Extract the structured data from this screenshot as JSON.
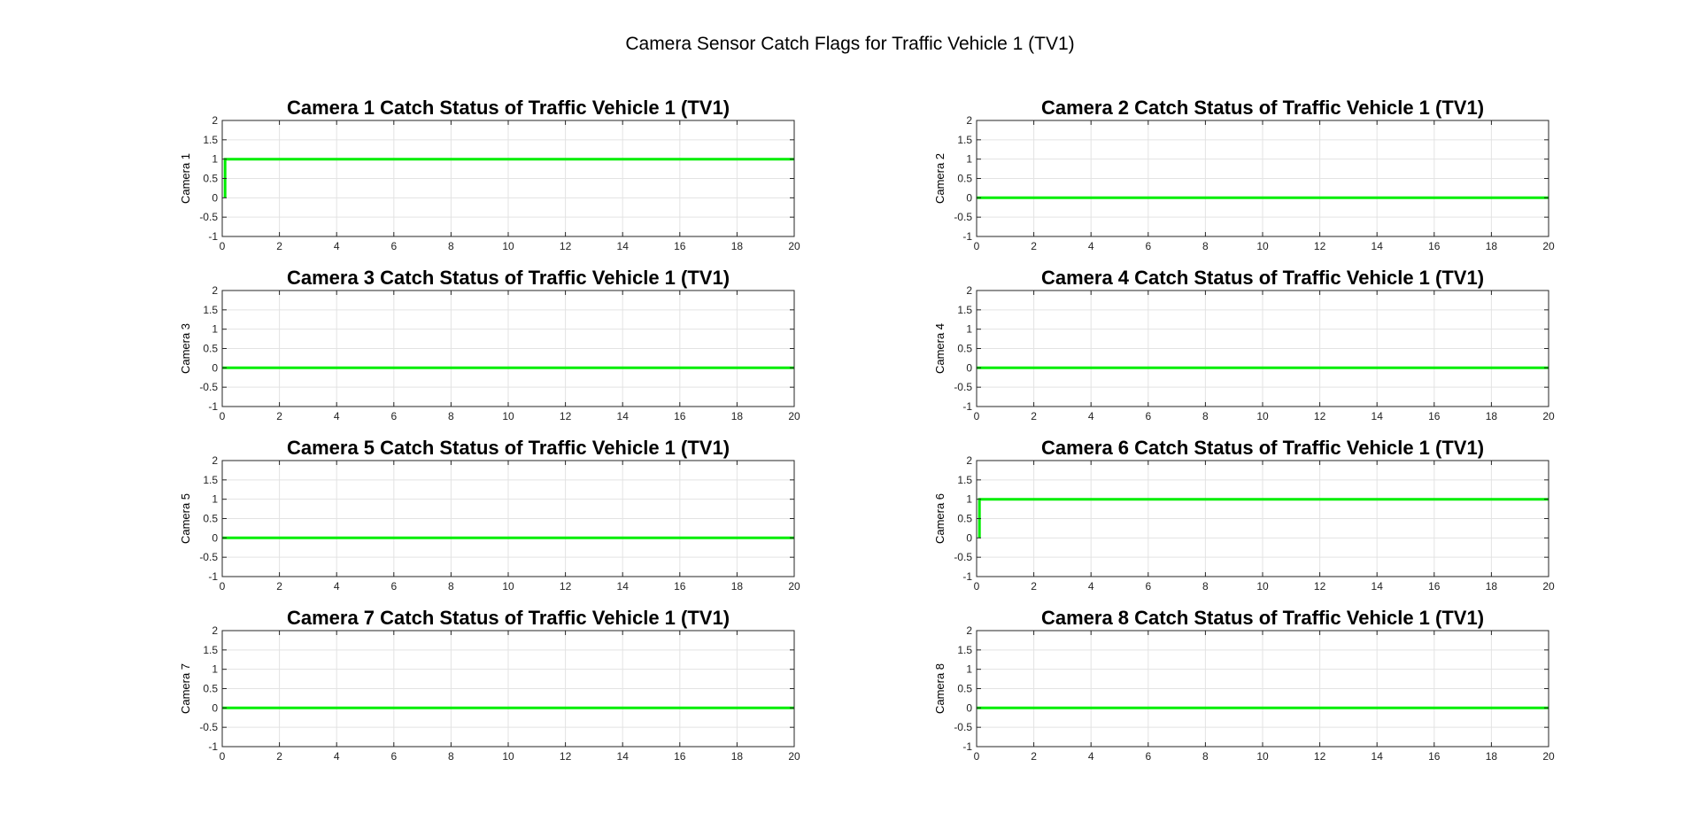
{
  "figure": {
    "suptitle": "Camera Sensor Catch Flags for Traffic Vehicle 1 (TV1)",
    "line_color": "#00ee00",
    "grid_color": "#e3e3e3",
    "axes_color": "#262626"
  },
  "chart_data": [
    {
      "type": "line",
      "title": "Camera 1 Catch Status of Traffic Vehicle 1 (TV1)",
      "ylabel": "Camera 1",
      "xlim": [
        0,
        20
      ],
      "ylim": [
        -1,
        2
      ],
      "xticks": [
        0,
        2,
        4,
        6,
        8,
        10,
        12,
        14,
        16,
        18,
        20
      ],
      "yticks": [
        -1,
        -0.5,
        0,
        0.5,
        1,
        1.5,
        2
      ],
      "grid": true,
      "x": [
        0.1,
        0.1,
        20
      ],
      "y": [
        0,
        1,
        1
      ]
    },
    {
      "type": "line",
      "title": "Camera 2 Catch Status of Traffic Vehicle 1 (TV1)",
      "ylabel": "Camera 2",
      "xlim": [
        0,
        20
      ],
      "ylim": [
        -1,
        2
      ],
      "xticks": [
        0,
        2,
        4,
        6,
        8,
        10,
        12,
        14,
        16,
        18,
        20
      ],
      "yticks": [
        -1,
        -0.5,
        0,
        0.5,
        1,
        1.5,
        2
      ],
      "grid": true,
      "x": [
        0,
        20
      ],
      "y": [
        0,
        0
      ]
    },
    {
      "type": "line",
      "title": "Camera 3 Catch Status of Traffic Vehicle 1 (TV1)",
      "ylabel": "Camera 3",
      "xlim": [
        0,
        20
      ],
      "ylim": [
        -1,
        2
      ],
      "xticks": [
        0,
        2,
        4,
        6,
        8,
        10,
        12,
        14,
        16,
        18,
        20
      ],
      "yticks": [
        -1,
        -0.5,
        0,
        0.5,
        1,
        1.5,
        2
      ],
      "grid": true,
      "x": [
        0,
        20
      ],
      "y": [
        0,
        0
      ]
    },
    {
      "type": "line",
      "title": "Camera 4 Catch Status of Traffic Vehicle 1 (TV1)",
      "ylabel": "Camera 4",
      "xlim": [
        0,
        20
      ],
      "ylim": [
        -1,
        2
      ],
      "xticks": [
        0,
        2,
        4,
        6,
        8,
        10,
        12,
        14,
        16,
        18,
        20
      ],
      "yticks": [
        -1,
        -0.5,
        0,
        0.5,
        1,
        1.5,
        2
      ],
      "grid": true,
      "x": [
        0,
        20
      ],
      "y": [
        0,
        0
      ]
    },
    {
      "type": "line",
      "title": "Camera 5 Catch Status of Traffic Vehicle 1 (TV1)",
      "ylabel": "Camera 5",
      "xlim": [
        0,
        20
      ],
      "ylim": [
        -1,
        2
      ],
      "xticks": [
        0,
        2,
        4,
        6,
        8,
        10,
        12,
        14,
        16,
        18,
        20
      ],
      "yticks": [
        -1,
        -0.5,
        0,
        0.5,
        1,
        1.5,
        2
      ],
      "grid": true,
      "x": [
        0,
        20
      ],
      "y": [
        0,
        0
      ]
    },
    {
      "type": "line",
      "title": "Camera 6 Catch Status of Traffic Vehicle 1 (TV1)",
      "ylabel": "Camera 6",
      "xlim": [
        0,
        20
      ],
      "ylim": [
        -1,
        2
      ],
      "xticks": [
        0,
        2,
        4,
        6,
        8,
        10,
        12,
        14,
        16,
        18,
        20
      ],
      "yticks": [
        -1,
        -0.5,
        0,
        0.5,
        1,
        1.5,
        2
      ],
      "grid": true,
      "x": [
        0.1,
        0.1,
        20
      ],
      "y": [
        0,
        1,
        1
      ]
    },
    {
      "type": "line",
      "title": "Camera 7 Catch Status of Traffic Vehicle 1 (TV1)",
      "ylabel": "Camera 7",
      "xlim": [
        0,
        20
      ],
      "ylim": [
        -1,
        2
      ],
      "xticks": [
        0,
        2,
        4,
        6,
        8,
        10,
        12,
        14,
        16,
        18,
        20
      ],
      "yticks": [
        -1,
        -0.5,
        0,
        0.5,
        1,
        1.5,
        2
      ],
      "grid": true,
      "x": [
        0,
        20
      ],
      "y": [
        0,
        0
      ]
    },
    {
      "type": "line",
      "title": "Camera 8 Catch Status of Traffic Vehicle 1 (TV1)",
      "ylabel": "Camera 8",
      "xlim": [
        0,
        20
      ],
      "ylim": [
        -1,
        2
      ],
      "xticks": [
        0,
        2,
        4,
        6,
        8,
        10,
        12,
        14,
        16,
        18,
        20
      ],
      "yticks": [
        -1,
        -0.5,
        0,
        0.5,
        1,
        1.5,
        2
      ],
      "grid": true,
      "x": [
        0,
        20
      ],
      "y": [
        0,
        0
      ]
    }
  ]
}
